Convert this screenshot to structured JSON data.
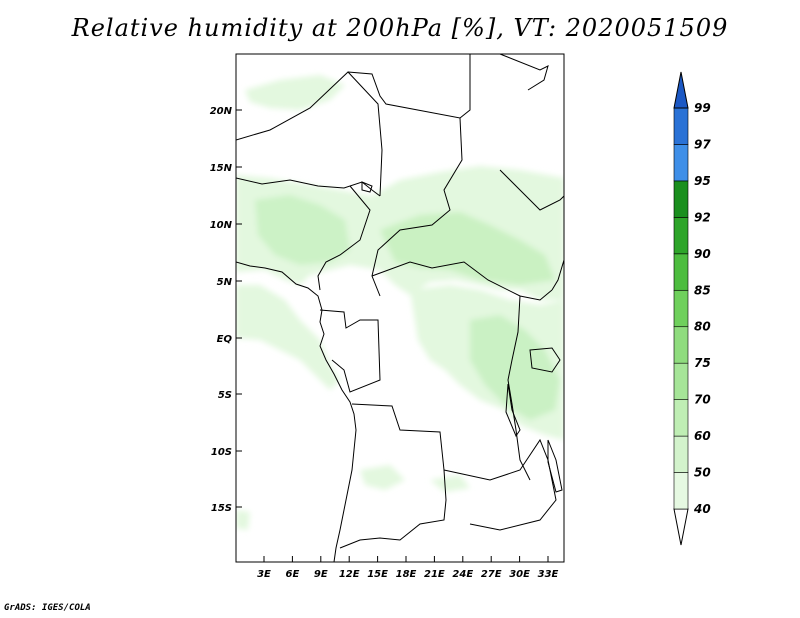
{
  "title": "Relative humidity at 200hPa [%], VT: 2020051509",
  "credit": "GrADS: IGES/COLA",
  "lat_labels": [
    "20N",
    "15N",
    "10N",
    "5N",
    "EQ",
    "5S",
    "10S",
    "15S"
  ],
  "lon_labels": [
    "3E",
    "6E",
    "9E",
    "12E",
    "15E",
    "18E",
    "21E",
    "24E",
    "27E",
    "30E",
    "33E"
  ],
  "colorbar": {
    "levels": [
      "40",
      "50",
      "60",
      "70",
      "75",
      "80",
      "85",
      "90",
      "92",
      "95",
      "97",
      "99"
    ],
    "colors": [
      "#e6f9e2",
      "#d3f3cc",
      "#bfeeb4",
      "#a6e598",
      "#8fdc7e",
      "#6fd05c",
      "#4dbd3f",
      "#2ea52a",
      "#1a8f1e",
      "#3f8fe8",
      "#2a72d6",
      "#1b58c4"
    ]
  },
  "colors": {
    "land_line": "#000000",
    "humid_light": "#e3f8df",
    "humid_mid": "#c6f0bf",
    "humid_deep": "#aee6a4"
  }
}
